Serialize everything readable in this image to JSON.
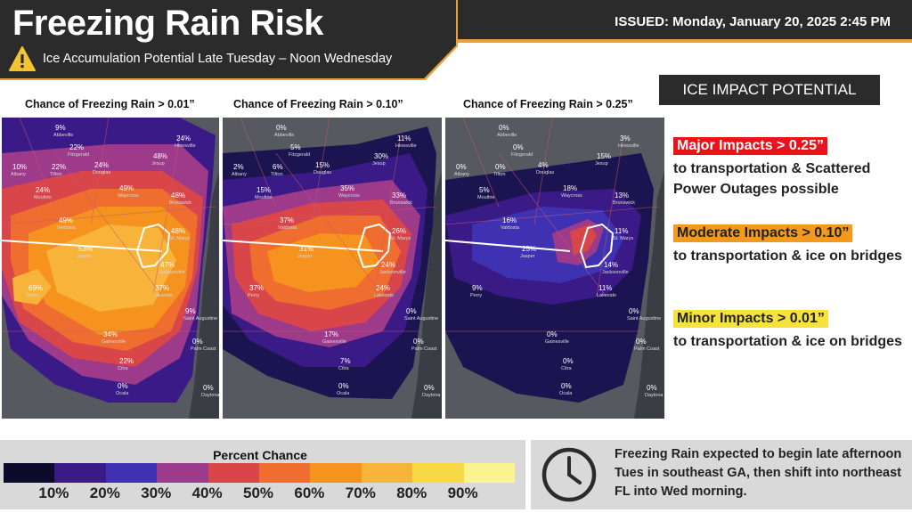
{
  "header": {
    "title": "Freezing Rain Risk",
    "subtitle": "Ice Accumulation Potential Late Tuesday – Noon Wednesday",
    "issued": "ISSUED: Monday, January 20, 2025 2:45 PM",
    "icon": "warning-icon"
  },
  "maps": [
    {
      "label": "Chance of Freezing Rain > 0.01”",
      "points": [
        {
          "city": "Albany",
          "pct": "10%"
        },
        {
          "city": "Abbeville",
          "pct": "9%"
        },
        {
          "city": "Fitzgerald",
          "pct": "22%"
        },
        {
          "city": "Tifton",
          "pct": "22%"
        },
        {
          "city": "Douglas",
          "pct": "24%"
        },
        {
          "city": "Hinesville",
          "pct": "24%"
        },
        {
          "city": "Jesup",
          "pct": "48%"
        },
        {
          "city": "Moultrie",
          "pct": "24%"
        },
        {
          "city": "Waycross",
          "pct": "49%"
        },
        {
          "city": "Brunswick",
          "pct": "48%"
        },
        {
          "city": "Valdosta",
          "pct": "49%"
        },
        {
          "city": "Jasper",
          "pct": "53%"
        },
        {
          "city": "St. Marys",
          "pct": "48%"
        },
        {
          "city": "Jacksonville",
          "pct": "47%"
        },
        {
          "city": "Perry",
          "pct": "69%"
        },
        {
          "city": "Lakeside",
          "pct": "37%"
        },
        {
          "city": "Saint Augustine",
          "pct": "9%"
        },
        {
          "city": "Gainesville",
          "pct": "34%"
        },
        {
          "city": "Palm Coast",
          "pct": "0%"
        },
        {
          "city": "Citra",
          "pct": "22%"
        },
        {
          "city": "Ocala",
          "pct": "0%"
        },
        {
          "city": "Daytona",
          "pct": "0%"
        }
      ]
    },
    {
      "label": "Chance of Freezing Rain > 0.10”",
      "points": [
        {
          "city": "Albany",
          "pct": "2%"
        },
        {
          "city": "Abbeville",
          "pct": "0%"
        },
        {
          "city": "Fitzgerald",
          "pct": "5%"
        },
        {
          "city": "Tifton",
          "pct": "6%"
        },
        {
          "city": "Douglas",
          "pct": "15%"
        },
        {
          "city": "Hinesville",
          "pct": "11%"
        },
        {
          "city": "Jesup",
          "pct": "30%"
        },
        {
          "city": "Moultrie",
          "pct": "15%"
        },
        {
          "city": "Waycross",
          "pct": "35%"
        },
        {
          "city": "Brunswick",
          "pct": "33%"
        },
        {
          "city": "Valdosta",
          "pct": "37%"
        },
        {
          "city": "Jasper",
          "pct": "31%"
        },
        {
          "city": "St. Marys",
          "pct": "26%"
        },
        {
          "city": "Jacksonville",
          "pct": "24%"
        },
        {
          "city": "Perry",
          "pct": "37%"
        },
        {
          "city": "Lakeside",
          "pct": "24%"
        },
        {
          "city": "Saint Augustine",
          "pct": "0%"
        },
        {
          "city": "Gainesville",
          "pct": "17%"
        },
        {
          "city": "Palm Coast",
          "pct": "0%"
        },
        {
          "city": "Citra",
          "pct": "7%"
        },
        {
          "city": "Ocala",
          "pct": "0%"
        },
        {
          "city": "Daytona",
          "pct": "0%"
        }
      ]
    },
    {
      "label": "Chance of Freezing Rain > 0.25”",
      "points": [
        {
          "city": "Albany",
          "pct": "0%"
        },
        {
          "city": "Abbeville",
          "pct": "0%"
        },
        {
          "city": "Fitzgerald",
          "pct": "0%"
        },
        {
          "city": "Tifton",
          "pct": "0%"
        },
        {
          "city": "Douglas",
          "pct": "4%"
        },
        {
          "city": "Hinesville",
          "pct": "3%"
        },
        {
          "city": "Jesup",
          "pct": "15%"
        },
        {
          "city": "Moultrie",
          "pct": "5%"
        },
        {
          "city": "Waycross",
          "pct": "18%"
        },
        {
          "city": "Brunswick",
          "pct": "13%"
        },
        {
          "city": "Valdosta",
          "pct": "16%"
        },
        {
          "city": "Jasper",
          "pct": "25%"
        },
        {
          "city": "St. Marys",
          "pct": "11%"
        },
        {
          "city": "Jacksonville",
          "pct": "14%"
        },
        {
          "city": "Perry",
          "pct": "9%"
        },
        {
          "city": "Lakeside",
          "pct": "11%"
        },
        {
          "city": "Saint Augustine",
          "pct": "0%"
        },
        {
          "city": "Gainesville",
          "pct": "0%"
        },
        {
          "city": "Palm Coast",
          "pct": "0%"
        },
        {
          "city": "Citra",
          "pct": "0%"
        },
        {
          "city": "Ocala",
          "pct": "0%"
        },
        {
          "city": "Daytona",
          "pct": "0%"
        }
      ]
    }
  ],
  "impact": {
    "header": "ICE IMPACT POTENTIAL",
    "levels": [
      {
        "tag": "Major Impacts > 0.25”",
        "desc": "to transportation & Scattered Power Outages possible",
        "color": "#e8141c",
        "text_color": "#ffffff"
      },
      {
        "tag": "Moderate Impacts > 0.10”",
        "desc": "to transportation & ice on bridges",
        "color": "#f39a1e",
        "text_color": "#222222"
      },
      {
        "tag": "Minor Impacts > 0.01”",
        "desc": "to transportation & ice on bridges",
        "color": "#f5e23a",
        "text_color": "#222222"
      }
    ]
  },
  "legend": {
    "title": "Percent Chance",
    "colors": [
      "#0d0a2c",
      "#3a1a86",
      "#3f32b2",
      "#9d3a8a",
      "#d9464a",
      "#ef6e2f",
      "#f5931e",
      "#f7b33a",
      "#f6d944",
      "#f9f48f"
    ],
    "ticks": [
      "10%",
      "20%",
      "30%",
      "40%",
      "50%",
      "60%",
      "70%",
      "80%",
      "90%"
    ]
  },
  "info": {
    "icon": "clock-icon",
    "text": "Freezing Rain expected to begin late afternoon Tues in southeast  GA, then shift into northeast FL into Wed morning."
  }
}
